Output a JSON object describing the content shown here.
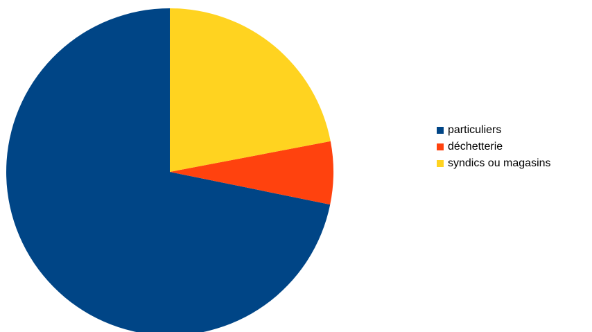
{
  "chart_data": {
    "type": "pie",
    "title": "",
    "categories": [
      "particuliers",
      "déchetterie",
      "syndics ou magasins"
    ],
    "values": [
      71.8,
      6.2,
      22.0
    ],
    "unit": "%",
    "colors": [
      "#004586",
      "#ff420e",
      "#ffd320"
    ],
    "start_angle_deg": 0,
    "direction": "counterclockwise",
    "legend": {
      "placement": "right",
      "entries": [
        {
          "label": "particuliers",
          "color": "#004586"
        },
        {
          "label": "déchetterie",
          "color": "#ff420e"
        },
        {
          "label": "syndics ou magasins",
          "color": "#ffd320"
        }
      ]
    }
  }
}
